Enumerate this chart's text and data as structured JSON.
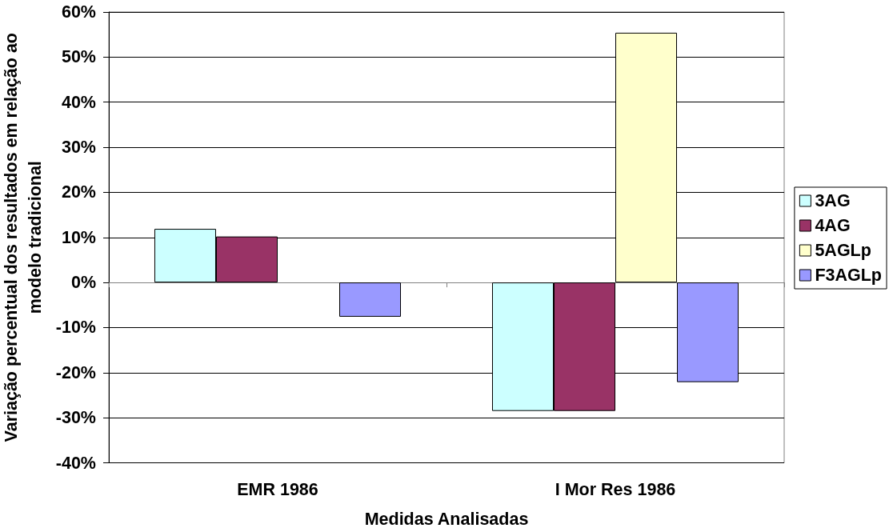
{
  "chart_data": {
    "type": "bar",
    "xlabel": "Medidas Analisadas",
    "ylabel": "Variação percentual dos resultados em relação ao modelo tradicional",
    "categories": [
      "EMR 1986",
      "I Mor Res 1986"
    ],
    "series": [
      {
        "name": "3AG",
        "color": "#ccffff",
        "values": [
          11.9,
          -28.5
        ]
      },
      {
        "name": "4AG",
        "color": "#993366",
        "values": [
          10.2,
          -28.5
        ]
      },
      {
        "name": "5AGLp",
        "color": "#ffffcc",
        "values": [
          null,
          55.4
        ]
      },
      {
        "name": "F3AGLp",
        "color": "#9999ff",
        "values": [
          -7.6,
          -22.1
        ]
      }
    ],
    "ylim": [
      -40,
      60
    ],
    "yticks": [
      {
        "value": -40,
        "label": "-40%"
      },
      {
        "value": -30,
        "label": "-30%"
      },
      {
        "value": -20,
        "label": "-20%"
      },
      {
        "value": -10,
        "label": "-10%"
      },
      {
        "value": 0,
        "label": "0%"
      },
      {
        "value": 10,
        "label": "10%"
      },
      {
        "value": 20,
        "label": "20%"
      },
      {
        "value": 30,
        "label": "30%"
      },
      {
        "value": 40,
        "label": "40%"
      },
      {
        "value": 50,
        "label": "50%"
      },
      {
        "value": 60,
        "label": "60%"
      }
    ],
    "grid": "y",
    "legend": "right"
  }
}
